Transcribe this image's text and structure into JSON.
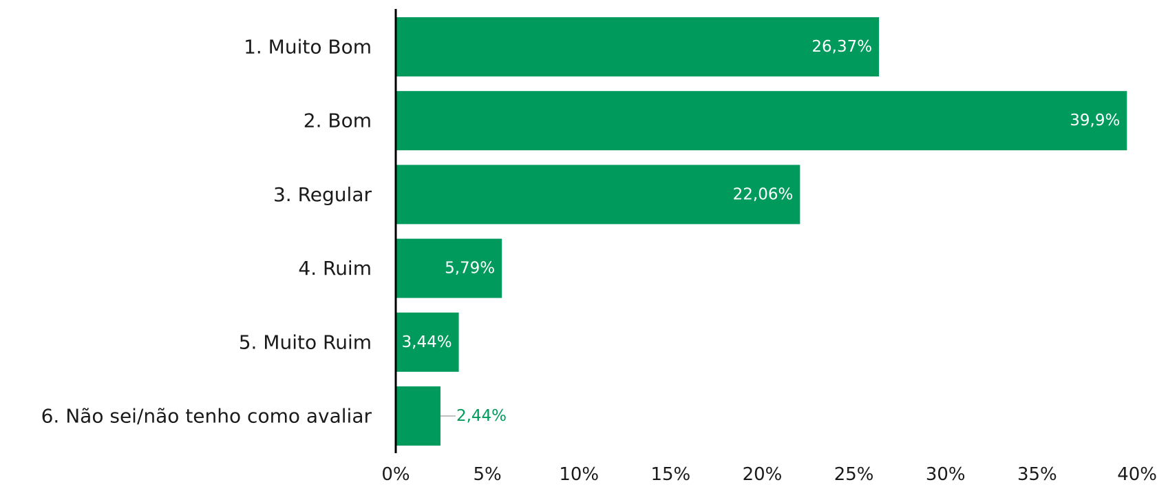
{
  "chart_data": {
    "type": "bar",
    "orientation": "horizontal",
    "categories": [
      "1. Muito Bom",
      "2. Bom",
      "3. Regular",
      "4. Ruim",
      "5. Muito Ruim",
      "6. Não sei/não tenho como avaliar"
    ],
    "values": [
      26.37,
      39.9,
      22.06,
      5.79,
      3.44,
      2.44
    ],
    "data_labels": [
      "26,37%",
      "39,9%",
      "22,06%",
      "5,79%",
      "3,44%",
      "2,44%"
    ],
    "xlim": [
      0,
      40
    ],
    "x_ticks": [
      0,
      5,
      10,
      15,
      20,
      25,
      30,
      35,
      40
    ],
    "x_tick_labels": [
      "0%",
      "5%",
      "10%",
      "15%",
      "20%",
      "25%",
      "30%",
      "35%",
      "40%"
    ],
    "grid": false,
    "legend": "none",
    "colors": {
      "bar": "#009B5C",
      "label_inside": "#ffffff",
      "label_outside": "#009B5C",
      "axis": "#000000"
    }
  }
}
